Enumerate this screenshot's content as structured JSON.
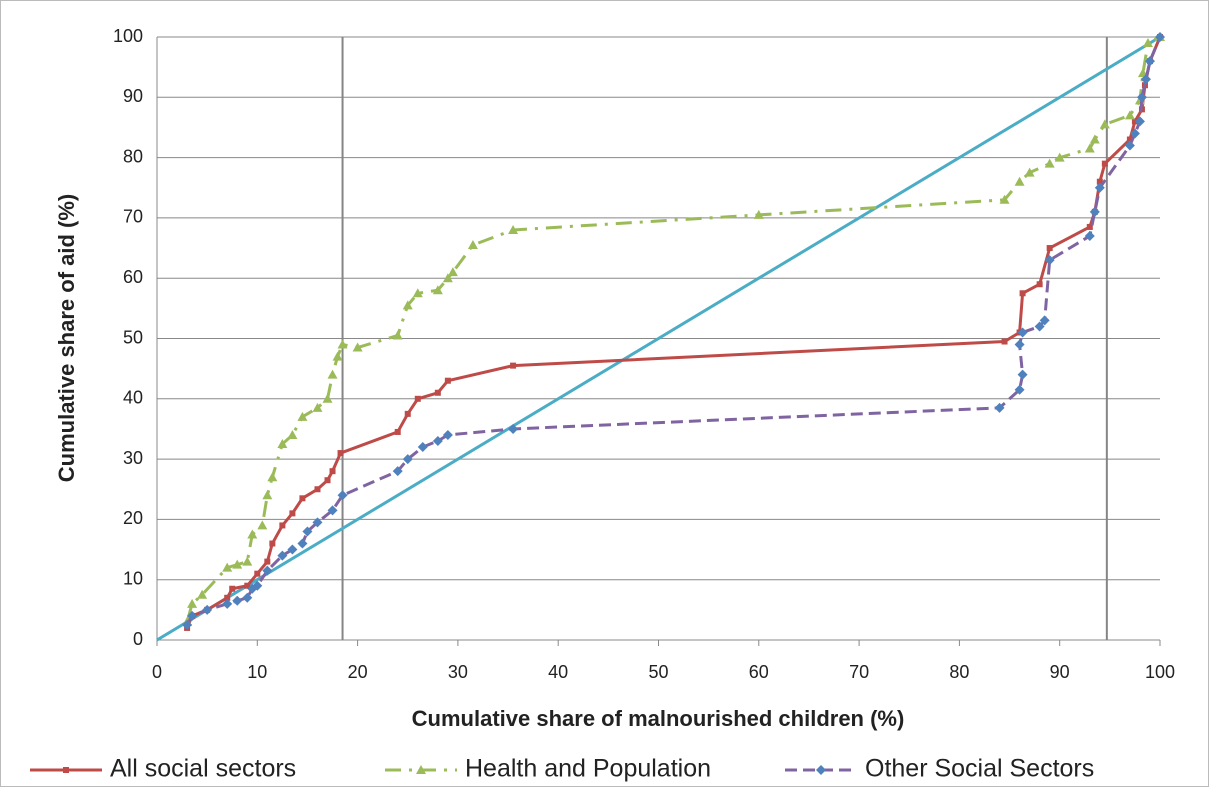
{
  "chart_data": {
    "type": "line",
    "x_label": "Cumulative share of malnourished children (%)",
    "y_label": "Cumulative share of aid (%)",
    "xlim": [
      0,
      100
    ],
    "ylim": [
      0,
      100
    ],
    "xticks": [
      0,
      10,
      20,
      30,
      40,
      50,
      60,
      70,
      80,
      90,
      100
    ],
    "yticks": [
      0,
      10,
      20,
      30,
      40,
      50,
      60,
      70,
      80,
      90,
      100
    ],
    "grid": true,
    "legend": "bottom",
    "vlines": [
      18.5,
      94.7
    ],
    "vline_color": "#858585",
    "equality_line": {
      "x": [
        0,
        100
      ],
      "y": [
        0,
        100
      ],
      "color": "#4bacc6"
    },
    "series": [
      {
        "name": "All social sectors",
        "color": "#be4b48",
        "marker": "square",
        "marker_color": "#be4b48",
        "dash": "solid",
        "x": [
          3,
          3.5,
          5,
          7,
          7.5,
          9,
          10,
          11,
          11.5,
          12.5,
          13.5,
          14.5,
          16,
          17,
          17.5,
          18.3,
          24,
          25,
          26,
          28,
          29,
          35.5,
          84.5,
          86,
          86.3,
          88,
          89,
          93,
          93.5,
          94,
          94.5,
          97,
          97.5,
          98.2,
          98.5,
          99,
          100
        ],
        "values": [
          2,
          4,
          5,
          7,
          8.5,
          9,
          11,
          13,
          16,
          19,
          21,
          23.5,
          25,
          26.5,
          28,
          31,
          34.5,
          37.5,
          40,
          41,
          43,
          45.5,
          49.5,
          51,
          57.5,
          59,
          65,
          68.5,
          71,
          76,
          79,
          83,
          86,
          88,
          92,
          96,
          100
        ]
      },
      {
        "name": "Health and Population",
        "color": "#9bbb59",
        "marker": "triangle",
        "marker_color": "#9bbb59",
        "dash": "dashdot",
        "x": [
          3,
          3.5,
          4.5,
          7,
          8,
          9,
          9.5,
          10.5,
          11,
          11.5,
          12.5,
          13.5,
          14.5,
          16,
          17,
          17.5,
          18,
          18.5,
          20,
          24,
          25,
          26,
          28,
          29,
          29.5,
          31.5,
          35.5,
          60,
          84.5,
          86,
          87,
          89,
          90,
          93,
          93.5,
          94.5,
          97,
          98,
          98.3,
          98.8,
          100
        ],
        "values": [
          3,
          6,
          7.5,
          12,
          12.5,
          13,
          17.5,
          19,
          24,
          27,
          32.5,
          34,
          37,
          38.5,
          40,
          44,
          47,
          49,
          48.5,
          50.5,
          55.5,
          57.5,
          58,
          60,
          61,
          65.5,
          68,
          70.5,
          73,
          76,
          77.5,
          79,
          80,
          81.5,
          83,
          85.5,
          87,
          89.5,
          94,
          99,
          100
        ]
      },
      {
        "name": "Other Social Sectors",
        "color": "#8064a2",
        "marker": "diamond",
        "marker_color": "#4f81bd",
        "dash": "dash",
        "x": [
          3,
          3.5,
          5,
          7,
          8,
          9,
          9.5,
          10,
          11,
          12.5,
          13.5,
          14.5,
          15,
          16,
          17.5,
          18.5,
          24,
          25,
          26.5,
          28,
          29,
          35.5,
          84,
          86,
          86.3,
          86,
          86.3,
          88,
          88.5,
          89,
          93,
          93.5,
          94,
          97,
          97.5,
          98,
          98.2,
          98.6,
          99,
          100
        ],
        "values": [
          2.5,
          4,
          5,
          6,
          6.5,
          7,
          8.5,
          9,
          11.5,
          14,
          15,
          16,
          18,
          19.5,
          21.5,
          24,
          28,
          30,
          32,
          33,
          34,
          35,
          38.5,
          41.5,
          44,
          49,
          51,
          52,
          53,
          63,
          67,
          71,
          75,
          82,
          84,
          86,
          90,
          93,
          96,
          100
        ]
      }
    ]
  }
}
